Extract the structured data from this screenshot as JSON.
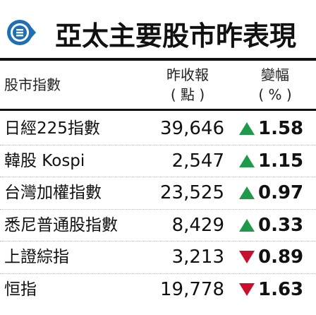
{
  "title": "亞太主要股市昨表現",
  "logo": {
    "icon": "hkej-logo-icon",
    "color": "#1f6fb5"
  },
  "columns": {
    "index": "股市指數",
    "close_line1": "昨收報",
    "close_line2": "( 點 )",
    "change_line1": "變幅",
    "change_line2": "( % )"
  },
  "colors": {
    "up": "#1e9a4a",
    "down": "#c8102e"
  },
  "rows": [
    {
      "name": "日經225指數",
      "close": "39,646",
      "direction": "up",
      "change": "1.58"
    },
    {
      "name": "韓股 Kospi",
      "close": "2,547",
      "direction": "up",
      "change": "1.15"
    },
    {
      "name": "台灣加權指數",
      "close": "23,525",
      "direction": "up",
      "change": "0.97"
    },
    {
      "name": "悉尼普通股指數",
      "close": "8,429",
      "direction": "up",
      "change": "0.33"
    },
    {
      "name": "上證綜指",
      "close": "3,213",
      "direction": "down",
      "change": "0.89"
    },
    {
      "name": "恒指",
      "close": "19,778",
      "direction": "down",
      "change": "1.63"
    }
  ]
}
